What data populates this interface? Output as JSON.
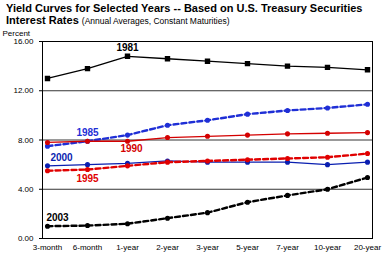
{
  "chart_data": {
    "type": "line",
    "title": "Yield Curves for Selected Years -- Based on U.S. Treasury Securities Interest Rates",
    "subtitle": "(Annual Averages, Constant Maturities)",
    "y_label": "Percent",
    "categories": [
      "3-month",
      "6-month",
      "1-year",
      "2-year",
      "3-year",
      "5-year",
      "7-year",
      "10-year",
      "20-year"
    ],
    "series": [
      {
        "name": "1981",
        "color": "#000000",
        "line_style": "solid",
        "marker": "square",
        "values": [
          13.0,
          13.8,
          14.8,
          14.6,
          14.4,
          14.2,
          14.0,
          13.9,
          13.7
        ]
      },
      {
        "name": "1985",
        "color": "#1f2fd6",
        "line_style": "dashed",
        "marker": "circle",
        "values": [
          7.5,
          7.9,
          8.4,
          9.2,
          9.6,
          10.1,
          10.4,
          10.6,
          10.9
        ]
      },
      {
        "name": "1990",
        "color": "#d40000",
        "line_style": "solid",
        "marker": "circle",
        "values": [
          7.8,
          7.9,
          7.9,
          8.2,
          8.3,
          8.4,
          8.5,
          8.55,
          8.6
        ]
      },
      {
        "name": "2000",
        "color": "#0a1fb0",
        "line_style": "solid",
        "marker": "circle",
        "values": [
          5.9,
          6.0,
          6.1,
          6.3,
          6.2,
          6.2,
          6.2,
          6.0,
          6.2
        ]
      },
      {
        "name": "1995",
        "color": "#e00000",
        "line_style": "dashed",
        "marker": "circle",
        "values": [
          5.5,
          5.6,
          5.9,
          6.2,
          6.3,
          6.4,
          6.5,
          6.6,
          6.9
        ]
      },
      {
        "name": "2003",
        "color": "#000000",
        "line_style": "dashed",
        "marker": "circle",
        "values": [
          1.0,
          1.05,
          1.2,
          1.65,
          2.1,
          2.95,
          3.5,
          4.0,
          4.95
        ]
      }
    ],
    "ylim": [
      0,
      16
    ],
    "yticks": [
      {
        "value": 0,
        "label": "0.00"
      },
      {
        "value": 4,
        "label": "4.00"
      },
      {
        "value": 8,
        "label": "8.00"
      },
      {
        "value": 12,
        "label": "12.00"
      },
      {
        "value": 16,
        "label": "16.00"
      }
    ],
    "grid": true
  }
}
